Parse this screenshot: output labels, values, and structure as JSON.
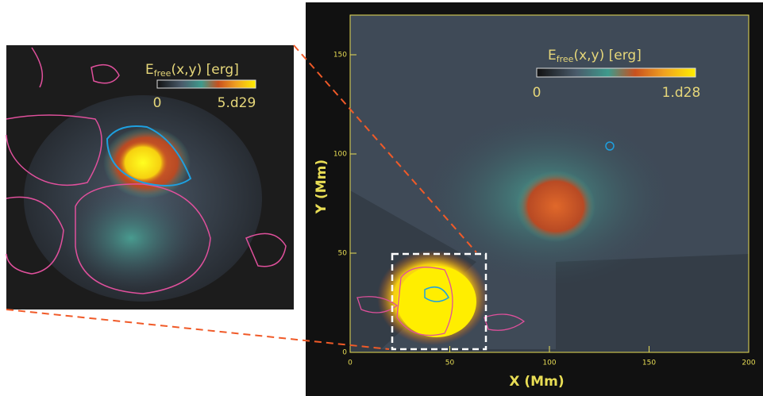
{
  "main_panel": {
    "colorbar": {
      "symbol": "E",
      "subscript": "free",
      "rest": "(x,y)  [erg]",
      "min_label": "0",
      "max_label": "1.d28"
    },
    "x_label": "X (Mm)",
    "y_label": "Y (Mm)",
    "xlim": [
      0,
      200
    ],
    "ylim": [
      0,
      170
    ],
    "xticks": [
      0,
      50,
      100,
      150,
      200
    ],
    "yticks": [
      0,
      50,
      100,
      150
    ]
  },
  "inset_panel": {
    "colorbar": {
      "symbol": "E",
      "subscript": "free",
      "rest": "(x,y)  [erg]",
      "min_label": "0",
      "max_label": "5.d29"
    }
  }
}
